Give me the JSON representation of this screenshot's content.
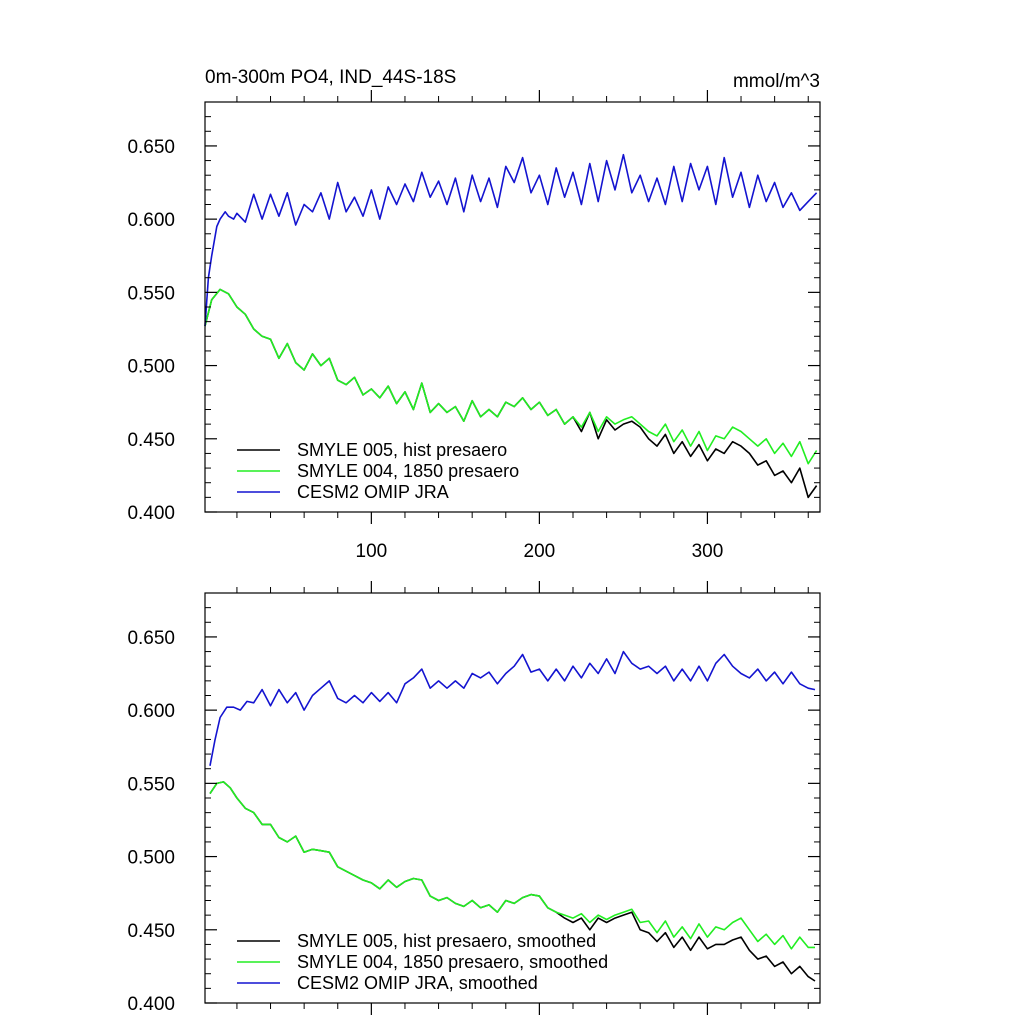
{
  "title_left": "0m-300m PO4, IND_44S-18S",
  "title_right": "mmol/m^3",
  "colors": {
    "black": "#000000",
    "green": "#22ee22",
    "blue": "#1414d0",
    "axis": "#000000"
  },
  "chart_data": [
    {
      "type": "line",
      "title": "0m-300m PO4, IND_44S-18S",
      "units": "mmol/m^3",
      "xlim": [
        1,
        367
      ],
      "ylim": [
        0.4,
        0.68
      ],
      "xticks": [
        100,
        200,
        300
      ],
      "xtick_labels": [
        "100",
        "200",
        "300"
      ],
      "yticks": [
        0.4,
        0.45,
        0.5,
        0.55,
        0.6,
        0.65
      ],
      "ytick_labels": [
        "0.400",
        "0.450",
        "0.500",
        "0.550",
        "0.600",
        "0.650"
      ],
      "legend_position": "bottom-left",
      "series": [
        {
          "name": "SMYLE 005, hist presaero",
          "color": "#000000",
          "x": [
            1,
            5,
            10,
            15,
            20,
            25,
            30,
            35,
            40,
            45,
            50,
            55,
            60,
            65,
            70,
            75,
            80,
            85,
            90,
            95,
            100,
            105,
            110,
            115,
            120,
            125,
            130,
            135,
            140,
            145,
            150,
            155,
            160,
            165,
            170,
            175,
            180,
            185,
            190,
            195,
            200,
            205,
            210,
            215,
            220,
            225,
            230,
            235,
            240,
            245,
            250,
            255,
            260,
            265,
            270,
            275,
            280,
            285,
            290,
            295,
            300,
            305,
            310,
            315,
            320,
            325,
            330,
            335,
            340,
            345,
            350,
            355,
            360,
            365
          ],
          "values": [
            0.527,
            0.545,
            0.552,
            0.549,
            0.54,
            0.535,
            0.525,
            0.52,
            0.518,
            0.505,
            0.515,
            0.502,
            0.497,
            0.508,
            0.5,
            0.505,
            0.49,
            0.487,
            0.492,
            0.48,
            0.484,
            0.478,
            0.486,
            0.474,
            0.482,
            0.47,
            0.488,
            0.468,
            0.474,
            0.468,
            0.472,
            0.462,
            0.476,
            0.465,
            0.47,
            0.465,
            0.475,
            0.472,
            0.478,
            0.47,
            0.475,
            0.466,
            0.47,
            0.46,
            0.465,
            0.455,
            0.468,
            0.45,
            0.463,
            0.456,
            0.46,
            0.462,
            0.458,
            0.45,
            0.445,
            0.453,
            0.44,
            0.448,
            0.438,
            0.446,
            0.435,
            0.443,
            0.44,
            0.448,
            0.445,
            0.44,
            0.432,
            0.435,
            0.425,
            0.428,
            0.42,
            0.43,
            0.41,
            0.418
          ]
        },
        {
          "name": "SMYLE 004, 1850 presaero",
          "color": "#22ee22",
          "x": [
            1,
            5,
            10,
            15,
            20,
            25,
            30,
            35,
            40,
            45,
            50,
            55,
            60,
            65,
            70,
            75,
            80,
            85,
            90,
            95,
            100,
            105,
            110,
            115,
            120,
            125,
            130,
            135,
            140,
            145,
            150,
            155,
            160,
            165,
            170,
            175,
            180,
            185,
            190,
            195,
            200,
            205,
            210,
            215,
            220,
            225,
            230,
            235,
            240,
            245,
            250,
            255,
            260,
            265,
            270,
            275,
            280,
            285,
            290,
            295,
            300,
            305,
            310,
            315,
            320,
            325,
            330,
            335,
            340,
            345,
            350,
            355,
            360,
            365
          ],
          "values": [
            0.527,
            0.545,
            0.552,
            0.549,
            0.54,
            0.535,
            0.525,
            0.52,
            0.518,
            0.505,
            0.515,
            0.502,
            0.497,
            0.508,
            0.5,
            0.505,
            0.49,
            0.487,
            0.492,
            0.48,
            0.484,
            0.478,
            0.486,
            0.474,
            0.482,
            0.47,
            0.488,
            0.468,
            0.474,
            0.468,
            0.472,
            0.462,
            0.476,
            0.465,
            0.47,
            0.465,
            0.475,
            0.472,
            0.478,
            0.47,
            0.475,
            0.466,
            0.47,
            0.46,
            0.465,
            0.458,
            0.468,
            0.455,
            0.465,
            0.46,
            0.463,
            0.465,
            0.46,
            0.455,
            0.452,
            0.46,
            0.448,
            0.456,
            0.445,
            0.455,
            0.442,
            0.452,
            0.45,
            0.458,
            0.455,
            0.45,
            0.445,
            0.45,
            0.44,
            0.447,
            0.438,
            0.448,
            0.433,
            0.442
          ]
        },
        {
          "name": "CESM2 OMIP JRA",
          "color": "#1414d0",
          "x": [
            1,
            3,
            5,
            8,
            10,
            13,
            15,
            18,
            20,
            25,
            30,
            35,
            40,
            45,
            50,
            55,
            60,
            65,
            70,
            75,
            80,
            85,
            90,
            95,
            100,
            105,
            110,
            115,
            120,
            125,
            130,
            135,
            140,
            145,
            150,
            155,
            160,
            165,
            170,
            175,
            180,
            185,
            190,
            195,
            200,
            205,
            210,
            215,
            220,
            225,
            230,
            235,
            240,
            245,
            250,
            255,
            260,
            265,
            270,
            275,
            280,
            285,
            290,
            295,
            300,
            305,
            310,
            315,
            320,
            325,
            330,
            335,
            340,
            345,
            350,
            355,
            360,
            365
          ],
          "values": [
            0.527,
            0.56,
            0.575,
            0.595,
            0.6,
            0.605,
            0.602,
            0.6,
            0.604,
            0.598,
            0.617,
            0.6,
            0.617,
            0.602,
            0.618,
            0.596,
            0.61,
            0.605,
            0.618,
            0.6,
            0.625,
            0.605,
            0.615,
            0.602,
            0.62,
            0.6,
            0.622,
            0.61,
            0.624,
            0.612,
            0.632,
            0.615,
            0.626,
            0.61,
            0.628,
            0.605,
            0.63,
            0.612,
            0.628,
            0.608,
            0.636,
            0.625,
            0.642,
            0.618,
            0.63,
            0.61,
            0.635,
            0.615,
            0.632,
            0.61,
            0.638,
            0.612,
            0.64,
            0.62,
            0.644,
            0.618,
            0.63,
            0.612,
            0.628,
            0.61,
            0.636,
            0.612,
            0.638,
            0.62,
            0.636,
            0.61,
            0.642,
            0.615,
            0.632,
            0.608,
            0.63,
            0.612,
            0.625,
            0.608,
            0.618,
            0.606,
            0.612,
            0.618
          ]
        }
      ]
    },
    {
      "type": "line",
      "xlim": [
        1,
        367
      ],
      "ylim": [
        0.4,
        0.68
      ],
      "xticks": [
        100,
        200,
        300
      ],
      "yticks": [
        0.4,
        0.45,
        0.5,
        0.55,
        0.6,
        0.65
      ],
      "ytick_labels": [
        "0.400",
        "0.450",
        "0.500",
        "0.550",
        "0.600",
        "0.650"
      ],
      "legend_position": "bottom-left",
      "series": [
        {
          "name": "SMYLE 005, hist presaero, smoothed",
          "color": "#000000",
          "x": [
            4,
            8,
            12,
            16,
            20,
            25,
            30,
            35,
            40,
            45,
            50,
            55,
            60,
            65,
            70,
            75,
            80,
            85,
            90,
            95,
            100,
            105,
            110,
            115,
            120,
            125,
            130,
            135,
            140,
            145,
            150,
            155,
            160,
            165,
            170,
            175,
            180,
            185,
            190,
            195,
            200,
            205,
            210,
            215,
            220,
            225,
            230,
            235,
            240,
            245,
            250,
            255,
            260,
            265,
            270,
            275,
            280,
            285,
            290,
            295,
            300,
            305,
            310,
            315,
            320,
            325,
            330,
            335,
            340,
            345,
            350,
            355,
            360,
            364
          ],
          "values": [
            0.543,
            0.55,
            0.551,
            0.547,
            0.54,
            0.533,
            0.53,
            0.522,
            0.522,
            0.513,
            0.51,
            0.514,
            0.503,
            0.505,
            0.504,
            0.503,
            0.493,
            0.49,
            0.487,
            0.484,
            0.482,
            0.478,
            0.484,
            0.479,
            0.483,
            0.485,
            0.484,
            0.473,
            0.47,
            0.472,
            0.468,
            0.466,
            0.47,
            0.465,
            0.467,
            0.462,
            0.47,
            0.468,
            0.472,
            0.474,
            0.473,
            0.465,
            0.462,
            0.458,
            0.455,
            0.458,
            0.45,
            0.458,
            0.455,
            0.458,
            0.46,
            0.462,
            0.45,
            0.448,
            0.442,
            0.448,
            0.438,
            0.445,
            0.436,
            0.445,
            0.437,
            0.44,
            0.44,
            0.443,
            0.445,
            0.436,
            0.43,
            0.432,
            0.425,
            0.428,
            0.42,
            0.425,
            0.418,
            0.415
          ]
        },
        {
          "name": "SMYLE 004, 1850 presaero, smoothed",
          "color": "#22ee22",
          "x": [
            4,
            8,
            12,
            16,
            20,
            25,
            30,
            35,
            40,
            45,
            50,
            55,
            60,
            65,
            70,
            75,
            80,
            85,
            90,
            95,
            100,
            105,
            110,
            115,
            120,
            125,
            130,
            135,
            140,
            145,
            150,
            155,
            160,
            165,
            170,
            175,
            180,
            185,
            190,
            195,
            200,
            205,
            210,
            215,
            220,
            225,
            230,
            235,
            240,
            245,
            250,
            255,
            260,
            265,
            270,
            275,
            280,
            285,
            290,
            295,
            300,
            305,
            310,
            315,
            320,
            325,
            330,
            335,
            340,
            345,
            350,
            355,
            360,
            364
          ],
          "values": [
            0.543,
            0.55,
            0.551,
            0.547,
            0.54,
            0.533,
            0.53,
            0.522,
            0.522,
            0.513,
            0.51,
            0.514,
            0.503,
            0.505,
            0.504,
            0.503,
            0.493,
            0.49,
            0.487,
            0.484,
            0.482,
            0.478,
            0.484,
            0.479,
            0.483,
            0.485,
            0.484,
            0.473,
            0.47,
            0.472,
            0.468,
            0.466,
            0.47,
            0.465,
            0.467,
            0.462,
            0.47,
            0.468,
            0.472,
            0.474,
            0.473,
            0.465,
            0.462,
            0.46,
            0.458,
            0.461,
            0.455,
            0.46,
            0.457,
            0.46,
            0.462,
            0.464,
            0.455,
            0.456,
            0.448,
            0.456,
            0.445,
            0.452,
            0.444,
            0.454,
            0.445,
            0.452,
            0.45,
            0.455,
            0.458,
            0.45,
            0.442,
            0.447,
            0.44,
            0.446,
            0.437,
            0.445,
            0.438,
            0.438
          ]
        },
        {
          "name": "CESM2 OMIP JRA, smoothed",
          "color": "#1414d0",
          "x": [
            4,
            7,
            10,
            14,
            18,
            22,
            26,
            30,
            35,
            40,
            45,
            50,
            55,
            60,
            65,
            70,
            75,
            80,
            85,
            90,
            95,
            100,
            105,
            110,
            115,
            120,
            125,
            130,
            135,
            140,
            145,
            150,
            155,
            160,
            165,
            170,
            175,
            180,
            185,
            190,
            195,
            200,
            205,
            210,
            215,
            220,
            225,
            230,
            235,
            240,
            245,
            250,
            255,
            260,
            265,
            270,
            275,
            280,
            285,
            290,
            295,
            300,
            305,
            310,
            315,
            320,
            325,
            330,
            335,
            340,
            345,
            350,
            355,
            360,
            364
          ],
          "values": [
            0.562,
            0.58,
            0.595,
            0.602,
            0.602,
            0.6,
            0.606,
            0.605,
            0.614,
            0.603,
            0.614,
            0.605,
            0.612,
            0.6,
            0.61,
            0.615,
            0.62,
            0.608,
            0.605,
            0.61,
            0.605,
            0.612,
            0.606,
            0.612,
            0.605,
            0.618,
            0.622,
            0.628,
            0.615,
            0.62,
            0.615,
            0.62,
            0.615,
            0.625,
            0.622,
            0.626,
            0.618,
            0.625,
            0.63,
            0.638,
            0.626,
            0.628,
            0.62,
            0.628,
            0.62,
            0.63,
            0.622,
            0.632,
            0.625,
            0.635,
            0.625,
            0.64,
            0.632,
            0.628,
            0.63,
            0.625,
            0.63,
            0.62,
            0.628,
            0.62,
            0.63,
            0.62,
            0.632,
            0.638,
            0.63,
            0.625,
            0.622,
            0.628,
            0.62,
            0.626,
            0.618,
            0.626,
            0.618,
            0.615,
            0.614
          ]
        }
      ]
    }
  ]
}
